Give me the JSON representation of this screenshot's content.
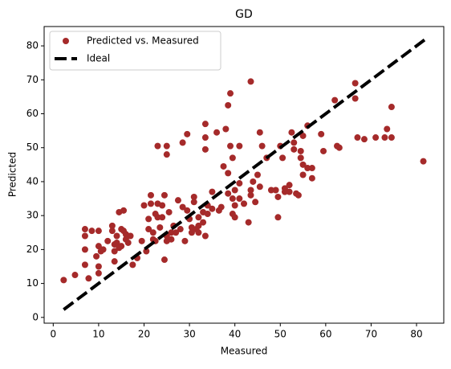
{
  "chart_data": {
    "type": "scatter",
    "title": "GD",
    "x_label": "Measured",
    "y_label": "Predicted",
    "xlim": [
      -2,
      86
    ],
    "ylim": [
      -1.7,
      85.7
    ],
    "xticks": [
      0,
      10,
      20,
      30,
      40,
      50,
      60,
      70,
      80
    ],
    "yticks": [
      0,
      10,
      20,
      30,
      40,
      50,
      60,
      70,
      80
    ],
    "legend": "upper left",
    "series": [
      {
        "name": "Predicted vs. Measured",
        "color": "#a52a2a",
        "style": "points",
        "x": [
          2.3,
          4.8,
          7,
          7,
          7,
          7,
          7.8,
          8.5,
          9.5,
          10,
          10,
          10,
          10,
          10.5,
          11,
          12,
          13,
          13,
          13.5,
          13.5,
          13.5,
          14,
          14,
          14.5,
          14.5,
          15,
          15,
          15.5,
          15.5,
          16,
          16,
          16.5,
          17,
          17.5,
          18.5,
          19.5,
          20,
          20.5,
          21,
          21,
          21.5,
          21.5,
          22,
          22,
          22.5,
          22.5,
          23,
          23,
          23,
          23.5,
          24,
          24,
          24.5,
          24.5,
          25,
          25,
          25,
          25,
          25.5,
          26,
          26,
          26.5,
          27,
          27.5,
          28,
          28.5,
          28.5,
          29,
          29.5,
          29.5,
          30,
          30.5,
          30.5,
          31,
          31,
          31.5,
          32,
          32,
          32,
          33,
          33,
          33.5,
          33.5,
          33.5,
          33.5,
          34,
          34,
          35,
          35,
          36,
          36.5,
          37,
          37.5,
          38,
          38.5,
          38.5,
          38.5,
          39,
          39,
          39.5,
          39.5,
          39.5,
          40,
          40,
          40,
          41,
          41,
          41,
          42,
          43,
          43.5,
          43.5,
          43.5,
          44,
          44.5,
          45,
          45.5,
          45.5,
          46,
          47,
          48,
          49,
          49.5,
          49.5,
          50,
          50.5,
          51,
          51,
          52,
          52,
          52.5,
          53,
          53,
          53.5,
          54,
          54.5,
          54.5,
          55,
          55,
          55,
          56,
          56,
          57,
          57,
          59,
          59.5,
          62,
          62.5,
          63,
          66.5,
          66.5,
          67,
          68.5,
          71,
          73,
          73.5,
          74.5,
          74.5,
          81.5
        ],
        "values": [
          11,
          12.5,
          26,
          24,
          20,
          15.5,
          11.5,
          25.5,
          18,
          25.5,
          21,
          15,
          13,
          19.5,
          20,
          22.5,
          27,
          25.5,
          21.5,
          19.5,
          16.5,
          24,
          22,
          20.5,
          31,
          21,
          26,
          31.5,
          25.5,
          24.5,
          23,
          22,
          24,
          15.5,
          17.5,
          22.5,
          33,
          19.5,
          29,
          26,
          36,
          33.5,
          23,
          25,
          30.5,
          22.5,
          50.5,
          33.5,
          29.5,
          26.5,
          29.5,
          33,
          36,
          17,
          50.5,
          48,
          24,
          22.5,
          31,
          25,
          23,
          27,
          25,
          34.5,
          26,
          51.5,
          32.5,
          22.5,
          54,
          31.5,
          29,
          26.5,
          25,
          35.5,
          34,
          26,
          29.5,
          27,
          25,
          28,
          31,
          49.5,
          53,
          57,
          24,
          33,
          30.5,
          32,
          37,
          54.5,
          31.5,
          32.5,
          44.5,
          55.5,
          42.5,
          36.5,
          62.5,
          66,
          50.5,
          47,
          35,
          30.5,
          29.5,
          33,
          37.5,
          50.5,
          39.5,
          35,
          33.5,
          28,
          69.5,
          37.5,
          36,
          40,
          34,
          42,
          54.5,
          38.5,
          50.5,
          47,
          37.5,
          37.5,
          29.5,
          35.5,
          50.5,
          47,
          37,
          38,
          37,
          39,
          54.5,
          51.5,
          49.5,
          36.5,
          36,
          47,
          49,
          53.5,
          45,
          42,
          44,
          56.5,
          44,
          41,
          54,
          49,
          64,
          50.5,
          50,
          69,
          64.5,
          53,
          52.5,
          53,
          53,
          55.5,
          53,
          62,
          46
        ]
      },
      {
        "name": "Ideal",
        "color": "#000000",
        "style": "dashed-line",
        "x": [
          2.3,
          81.8
        ],
        "values": [
          2.3,
          81.8
        ]
      }
    ]
  }
}
